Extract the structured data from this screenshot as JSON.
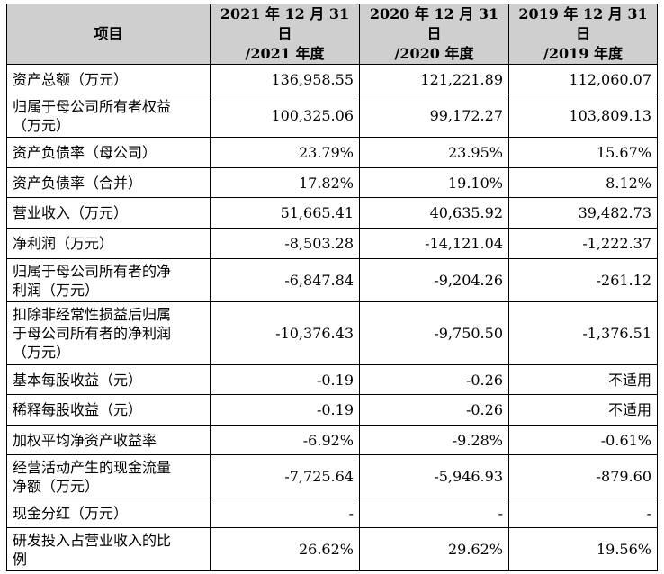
{
  "headers": [
    "项目",
    "2021 年 12 月 31 日\n/2021 年度",
    "2020 年 12 月 31 日\n/2020 年度",
    "2019 年 12 月 31 日\n/2019 年度"
  ],
  "rows": [
    {
      "label": "资产总额（万元）",
      "values": [
        "136,958.55",
        "121,221.89",
        "112,060.07"
      ]
    },
    {
      "label": "归属于母公司所有者权益\n（万元）",
      "values": [
        "100,325.06",
        "99,172.27",
        "103,809.13"
      ]
    },
    {
      "label": "资产负债率（母公司）",
      "values": [
        "23.79%",
        "23.95%",
        "15.67%"
      ]
    },
    {
      "label": "资产负债率（合并）",
      "values": [
        "17.82%",
        "19.10%",
        "8.12%"
      ]
    },
    {
      "label": "营业收入（万元）",
      "values": [
        "51,665.41",
        "40,635.92",
        "39,482.73"
      ]
    },
    {
      "label": "净利润（万元）",
      "values": [
        "-8,503.28",
        "-14,121.04",
        "-1,222.37"
      ]
    },
    {
      "label": "归属于母公司所有者的净\n利润（万元）",
      "values": [
        "-6,847.84",
        "-9,204.26",
        "-261.12"
      ]
    },
    {
      "label": "扣除非经常性损益后归属\n于母公司所有者的净利润\n（万元）",
      "values": [
        "-10,376.43",
        "-9,750.50",
        "-1,376.51"
      ]
    },
    {
      "label": "基本每股收益（元）",
      "values": [
        "-0.19",
        "-0.26",
        "不适用"
      ]
    },
    {
      "label": "稀释每股收益（元）",
      "values": [
        "-0.19",
        "-0.26",
        "不适用"
      ]
    },
    {
      "label": "加权平均净资产收益率",
      "values": [
        "-6.92%",
        "-9.28%",
        "-0.61%"
      ]
    },
    {
      "label": "经营活动产生的现金流量\n净额（万元）",
      "values": [
        "-7,725.64",
        "-5,946.93",
        "-879.60"
      ]
    },
    {
      "label": "现金分红（万元）",
      "values": [
        "-",
        "-",
        "-"
      ]
    },
    {
      "label": "研发投入占营业收入的比\n例",
      "values": [
        "26.62%",
        "29.62%",
        "19.56%"
      ]
    }
  ]
}
